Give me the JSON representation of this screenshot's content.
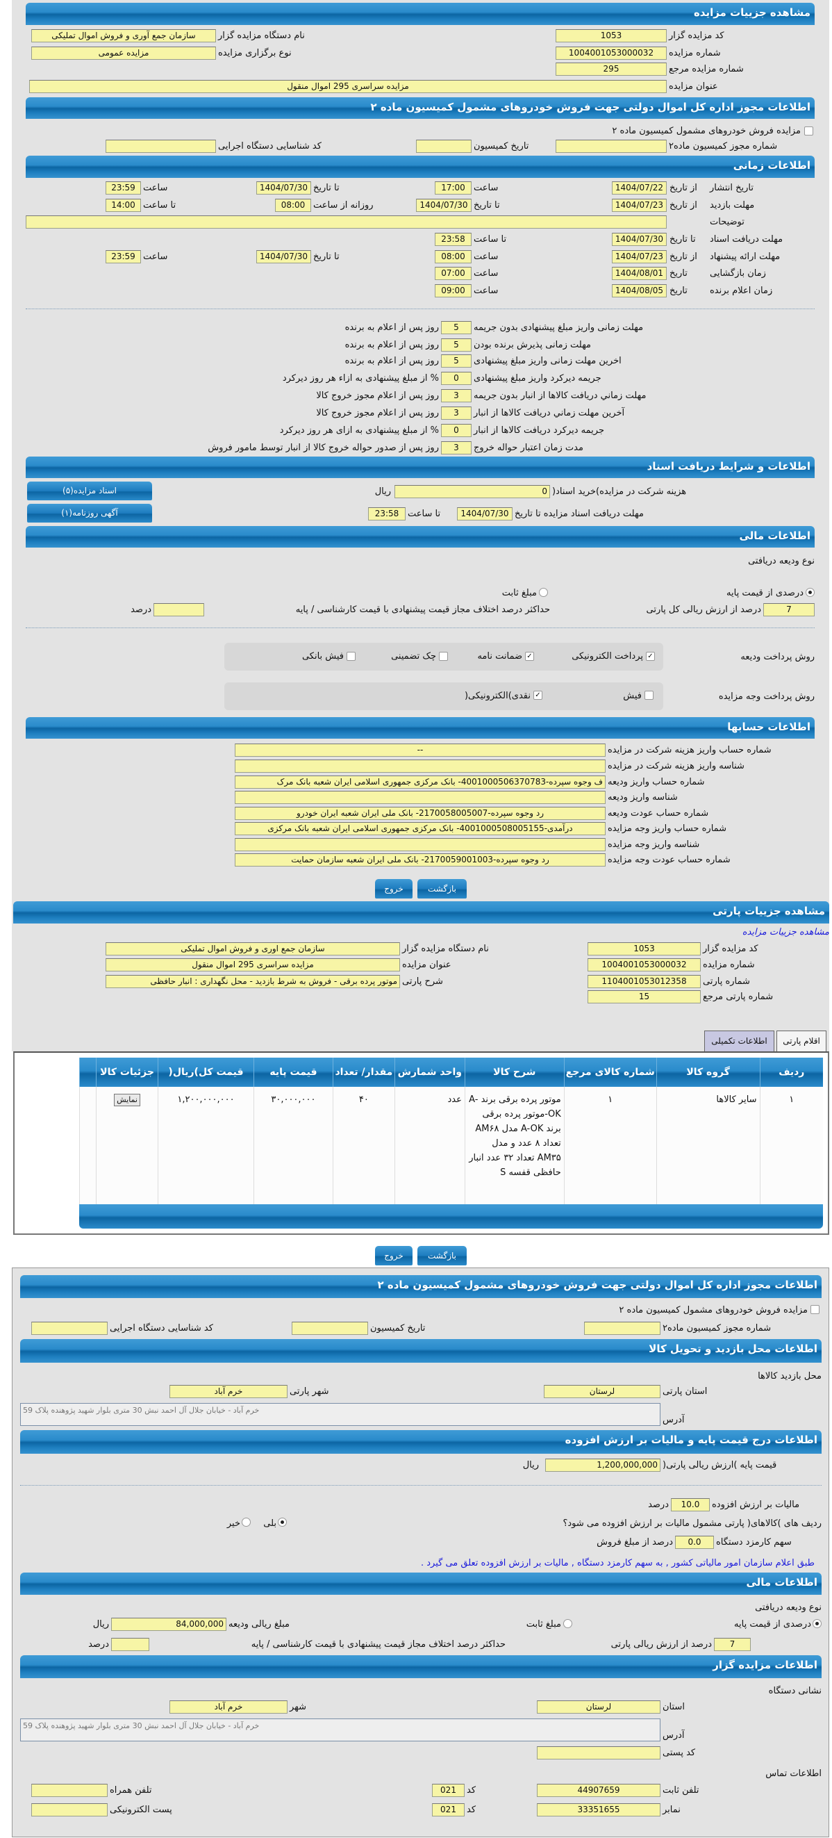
{
  "auction": {
    "title": "مشاهده جزییات مزایده",
    "org_code": {
      "label": "کد مزایده گزار",
      "value": "1053"
    },
    "org_name": {
      "label": "نام دستگاه مزایده گزار",
      "value": "سازمان جمع آوری و فروش اموال تملیکی"
    },
    "auction_no": {
      "label": "شماره مزایده",
      "value": "1004001053000032"
    },
    "type": {
      "label": "نوع برگزاری مزایده",
      "value": "مزایده عمومی"
    },
    "ref_no": {
      "label": "شماره مزایده مرجع",
      "value": "295"
    },
    "auction_title": {
      "label": "عنوان مزایده",
      "value": "مزایده سراسری 295 اموال منقول"
    }
  },
  "permit": {
    "title": "اطلاعات مجوز اداره کل اموال دولتی جهت فروش خودروهای مشمول کمیسیون ماده ۲",
    "checkbox_label": "مزایده فروش خودروهای مشمول کمیسیون ماده ۲",
    "checked": false,
    "permit_no": {
      "label": "شماره مجوز کمیسیون ماده۲",
      "value": ""
    },
    "date": {
      "label": "تاریخ کمیسیون",
      "value": ""
    },
    "exec_code": {
      "label": "کد شناسایی دستگاه اجرایی",
      "value": ""
    }
  },
  "timing": {
    "title": "اطلاعات زمانی",
    "publish": {
      "label": "تاریخ انتشار",
      "from_label": "از تاریخ",
      "from": "1404/07/22",
      "time_label": "ساعت",
      "time": "17:00",
      "to_label": "تا تاریخ",
      "to": "1404/07/30",
      "to_time_label": "ساعت",
      "to_time": "23:59"
    },
    "visit": {
      "label": "مهلت بازدید",
      "from_label": "از تاریخ",
      "from": "1404/07/23",
      "to_label": "تا تاریخ",
      "to": "1404/07/30",
      "daily_label": "روزانه از ساعت",
      "daily_from": "08:00",
      "daily_to_label": "تا ساعت",
      "daily_to": "14:00"
    },
    "desc": {
      "label": "توضیحات",
      "value": ""
    },
    "docs": {
      "label": "مهلت دریافت اسناد",
      "to_label": "تا تاریخ",
      "to": "1404/07/30",
      "time_label": "تا ساعت",
      "time": "23:58"
    },
    "offer": {
      "label": "مهلت ارائه پیشنهاد",
      "from_label": "از تاریخ",
      "from": "1404/07/23",
      "time_label": "ساعت",
      "time": "08:00",
      "to_label": "تا تاریخ",
      "to": "1404/07/30",
      "to_time_label": "ساعت",
      "to_time": "23:59"
    },
    "opening": {
      "label": "زمان بازگشایی",
      "date_label": "تاریخ",
      "date": "1404/08/01",
      "time_label": "ساعت",
      "time": "07:00"
    },
    "winner": {
      "label": "زمان اعلام برنده",
      "date_label": "تاریخ",
      "date": "1404/08/05",
      "time_label": "ساعت",
      "time": "09:00"
    },
    "deadlines": [
      {
        "label": "مهلت زمانی واریز مبلغ پیشنهادی بدون جریمه",
        "value": "5",
        "suffix": "روز پس از اعلام به برنده"
      },
      {
        "label": "مهلت زمانی پذیرش برنده بودن",
        "value": "5",
        "suffix": "روز پس از اعلام به برنده"
      },
      {
        "label": "اخرین مهلت زمانی واریز مبلغ پیشنهادی",
        "value": "5",
        "suffix": "روز پس از اعلام به برنده"
      },
      {
        "label": "جریمه دیرکرد واریز مبلغ پیشنهادی",
        "value": "0",
        "suffix": "% از مبلغ پیشنهادی به ازاء هر روز دیرکرد"
      },
      {
        "label": "مهلت زماني دريافت کالاها از انبار بدون جريمه",
        "value": "3",
        "suffix": "روز پس از اعلام مجوز خروج کالا"
      },
      {
        "label": "آخرين مهلت زماني دريافت کالاها از انبار",
        "value": "3",
        "suffix": "روز پس از اعلام مجوز خروج کالا"
      },
      {
        "label": "جريمه ديرکرد دريافت کالاها از انبار",
        "value": "0",
        "suffix": "% از مبلغ پیشنهادی به ازای هر روز دیرکرد"
      },
      {
        "label": "مدت زمان اعتبار حواله خروج",
        "value": "3",
        "suffix": "روز پس از صدور حواله خروج کالا از انبار توسط مامور فروش"
      }
    ]
  },
  "documents": {
    "title": "اطلاعات و شرایط دریافت اسناد",
    "docs_button": "اسناد مزایده(۵)",
    "ad_button": "آگهی روزنامه(۱)",
    "fee_label": "هزینه شرکت در مزایده)خرید اسناد(",
    "fee": "0",
    "fee_unit": "ریال",
    "deadline_label": "مهلت دریافت اسناد مزایده تا تاریخ",
    "deadline_date": "1404/07/30",
    "deadline_time_label": "تا ساعت",
    "deadline_time": "23:58"
  },
  "finance": {
    "title": "اطلاعات مالی",
    "deposit_type_label": "نوع ودیعه دریافتی",
    "opt_percent": "درصدی از قیمت پایه",
    "opt_fixed": "مبلغ ثابت",
    "selected": "percent",
    "percent": "7",
    "percent_label": "درصد از ارزش ریالی کل پارتی",
    "max_diff_label": "حداکثر درصد اختلاف مجاز قیمت پیشنهادی با قیمت کارشناسی / پایه",
    "max_diff": "",
    "max_diff_unit": "درصد",
    "deposit_method_label": "روش پرداخت ودیعه",
    "deposit_methods": [
      {
        "label": "پرداخت الکترونیکی",
        "checked": true
      },
      {
        "label": "ضمانت نامه",
        "checked": true
      },
      {
        "label": "چک تضمینی",
        "checked": false
      },
      {
        "label": "فیش بانکی",
        "checked": false
      }
    ],
    "payment_method_label": "روش پرداخت وجه مزایده",
    "payment_methods": [
      {
        "label": "فیش",
        "checked": false
      },
      {
        "label": "نقدی)الکترونیکی(",
        "checked": true
      }
    ]
  },
  "accounts": {
    "title": "اطلاعات حسابها",
    "rows": [
      {
        "label": "شماره حساب واریز هزینه شرکت در مزایده",
        "value": "--"
      },
      {
        "label": "شناسه واریز هزینه شرکت در مزایده",
        "value": ""
      },
      {
        "label": "شماره حساب واریز ودیعه",
        "value": "ف وجوه سپرده-4001000506370783- بانک مرکزی جمهوری اسلامی ایران شعبه بانک مرک"
      },
      {
        "label": "شناسه واریز ودیعه",
        "value": ""
      },
      {
        "label": "شماره حساب عودت ودیعه",
        "value": "رد وجوه سپرده-2170058005007- بانک ملی ایران شعبه ایران خودرو"
      },
      {
        "label": "شماره حساب واریز وجه مزایده",
        "value": "درآمدی-4001000508005155- بانک مرکزی جمهوری اسلامی ایران شعبه بانک مرکزی"
      },
      {
        "label": "شناسه واریز وجه مزایده",
        "value": ""
      },
      {
        "label": "شماره حساب عودت وجه مزایده",
        "value": "رد وجوه سپرده-2170059001003- بانک ملی ایران شعبه سازمان حمایت"
      }
    ]
  },
  "buttons": {
    "back": "بازگشت",
    "exit": "خروج"
  },
  "party": {
    "title": "مشاهده جزییات پارتی",
    "link": "مشاهده جزییات مزایده",
    "org_code": {
      "label": "کد مزایده گزار",
      "value": "1053"
    },
    "org_name": {
      "label": "نام دستگاه مزایده گزار",
      "value": "سازمان جمع اوری و فروش اموال تملیکی"
    },
    "auction_no": {
      "label": "شماره مزایده",
      "value": "1004001053000032"
    },
    "auction_title": {
      "label": "عنوان مزایده",
      "value": "مزایده سراسری 295 اموال منقول"
    },
    "party_no": {
      "label": "شماره پارتی",
      "value": "1104001053012358"
    },
    "party_desc": {
      "label": "شرح پارتی",
      "value": "موتور پرده برقی - فروش به شرط بازدید - محل نگهداری : انبار حافظی"
    },
    "party_ref": {
      "label": "شماره پارتی مرجع",
      "value": "15"
    },
    "tabs": [
      "اقلام پارتی",
      "اطلاعات تکمیلی"
    ],
    "columns": [
      "ردیف",
      "گروه کالا",
      "شماره کالای مرجع",
      "شرح کالا",
      "واحد شمارش",
      "مقدار/ تعداد",
      "قیمت پایه",
      "قیمت کل)ریال(",
      "جزئیات کالا"
    ],
    "items": [
      {
        "row": "۱",
        "group": "سایر کالاها",
        "ref": "۱",
        "desc": "موتور پرده برقی برند A-OK-موتور پرده برقی برند A-OK مدل AM۶۸ تعداد ۸ عدد و مدل AM۳۵ تعداد ۳۲ عدد انبار حافظی قفسه S",
        "unit": "عدد",
        "qty": "۴۰",
        "base": "۳۰,۰۰۰,۰۰۰",
        "total": "۱,۲۰۰,۰۰۰,۰۰۰",
        "details_button": "نمایش"
      }
    ]
  },
  "permit2": {
    "title": "اطلاعات مجوز اداره کل اموال دولتی جهت فروش خودروهای مشمول کمیسیون ماده ۲",
    "checkbox_label": "مزایده فروش خودروهای مشمول کمیسیون ماده ۲",
    "permit_no": {
      "label": "شماره مجوز کمیسیون ماده۲",
      "value": ""
    },
    "date": {
      "label": "تاریخ کمیسیون",
      "value": ""
    },
    "exec_code": {
      "label": "کد شناسایی دستگاه اجرایی",
      "value": ""
    }
  },
  "visit_place": {
    "title": "اطلاعات محل بازدید و تحویل کالا",
    "subtitle": "محل بازدید کالاها",
    "province": {
      "label": "استان پارتی",
      "value": "لرستان"
    },
    "city": {
      "label": "شهر پارتی",
      "value": "خرم آباد"
    },
    "address": {
      "label": "آدرس",
      "value": "خرم آباد - خیابان جلال آل احمد نبش 30 متری بلوار شهید پژوهنده پلاک 59"
    }
  },
  "pricing": {
    "title": "اطلاعات درج قیمت پایه و مالیات بر ارزش افزوده",
    "base_label": "قیمت پایه )ارزش ریالی پارتی(",
    "base": "1,200,000,000",
    "base_unit": "ریال",
    "vat_label": "مالیات بر ارزش افزوده",
    "vat": "10.0",
    "vat_unit": "درصد",
    "vat_q": "ردیف های )کالاهای( پارتی مشمول مالیات بر ارزش افزوده می شود؟",
    "yes": "بلی",
    "no": "خیر",
    "vat_applies": true,
    "fee_label": "سهم کارمزد دستگاه",
    "fee": "0.0",
    "fee_unit": "درصد از مبلغ فروش",
    "note": "طبق اعلام سازمان امور مالیاتی کشور , به سهم کارمزد دستگاه , مالیات بر ارزش افزوده تعلق می گیرد ."
  },
  "finance2": {
    "title": "اطلاعات مالی",
    "deposit_type_label": "نوع ودیعه دریافتی",
    "opt_percent": "درصدی از قیمت پایه",
    "opt_fixed": "مبلغ ثابت",
    "amount_label": "مبلغ ریالی ودیعه",
    "amount": "84,000,000",
    "amount_unit": "ریال",
    "percent": "7",
    "percent_label": "درصد از ارزش ریالی پارتی",
    "max_diff_label": "حداکثر درصد اختلاف مجاز قیمت پیشنهادی با قیمت کارشناسی / پایه",
    "max_diff": "",
    "max_diff_unit": "درصد"
  },
  "organizer": {
    "title": "اطلاعات مزایده گزار",
    "address_title": "نشانی دستگاه",
    "province": {
      "label": "استان",
      "value": "لرستان"
    },
    "city": {
      "label": "شهر",
      "value": "خرم آباد"
    },
    "address": {
      "label": "آدرس",
      "value": "خرم آباد - خیابان جلال آل احمد نبش 30 متری بلوار شهید پژوهنده پلاک 59"
    },
    "postal": {
      "label": "کد پستی",
      "value": ""
    },
    "contact_title": "اطلاعات تماس",
    "phone": {
      "label": "تلفن ثابت",
      "value": "44907659",
      "code_label": "کد",
      "code": "021"
    },
    "fax": {
      "label": "نمابر",
      "value": "33351655",
      "code_label": "کد",
      "code": "021"
    },
    "mobile": {
      "label": "تلفن همراه",
      "value": ""
    },
    "email": {
      "label": "پست الکترونیکی",
      "value": ""
    }
  },
  "colors": {
    "header": "#0c65a3",
    "input": "#f7f5a6",
    "panel": "#e3e3e3",
    "link": "#1a1adb"
  }
}
